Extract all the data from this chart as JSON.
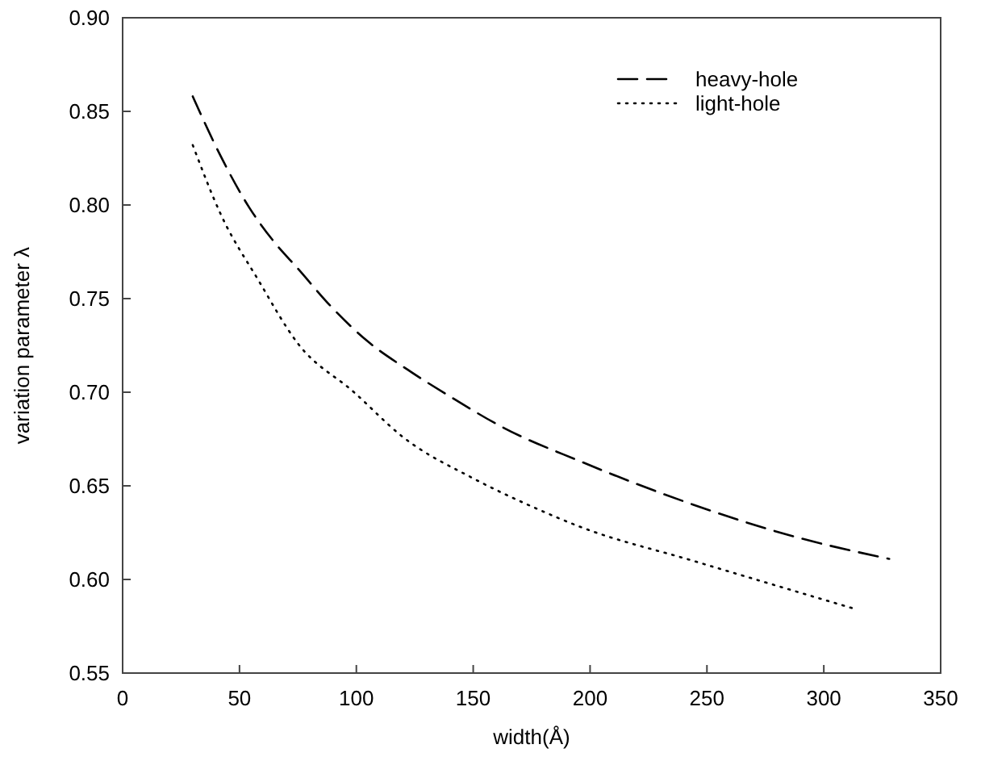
{
  "chart_data": {
    "type": "line",
    "xlabel": "width(Å)",
    "ylabel": "variation parameter λ",
    "xlim": [
      0,
      350
    ],
    "xticks": [
      0,
      50,
      100,
      150,
      200,
      250,
      300,
      350
    ],
    "ylim": [
      0.55,
      0.9
    ],
    "yticks": [
      {
        "value": 0.55,
        "label": "0.55"
      },
      {
        "value": 0.6,
        "label": "0.60"
      },
      {
        "value": 0.65,
        "label": "0.65"
      },
      {
        "value": 0.7,
        "label": "0.70"
      },
      {
        "value": 0.75,
        "label": "0.75"
      },
      {
        "value": 0.8,
        "label": "0.80"
      },
      {
        "value": 0.85,
        "label": "0.85"
      },
      {
        "value": 0.9,
        "label": "0.90"
      }
    ],
    "grid": false,
    "legend": "top right",
    "series": [
      {
        "name": "heavy-hole",
        "color": "#000000",
        "line_style": "dashed",
        "x": [
          30,
          42,
          54,
          65,
          75,
          89,
          105,
          122,
          141,
          163,
          196,
          244,
          290,
          328
        ],
        "values": [
          0.858,
          0.826,
          0.799,
          0.78,
          0.766,
          0.746,
          0.727,
          0.712,
          0.697,
          0.681,
          0.663,
          0.64,
          0.622,
          0.611
        ]
      },
      {
        "name": "light-hole",
        "color": "#000000",
        "line_style": "dotted",
        "x": [
          30,
          42,
          58,
          75,
          99,
          120,
          150,
          175,
          196,
          244,
          314
        ],
        "values": [
          0.832,
          0.795,
          0.76,
          0.726,
          0.7,
          0.676,
          0.654,
          0.639,
          0.628,
          0.61,
          0.584
        ]
      }
    ]
  }
}
